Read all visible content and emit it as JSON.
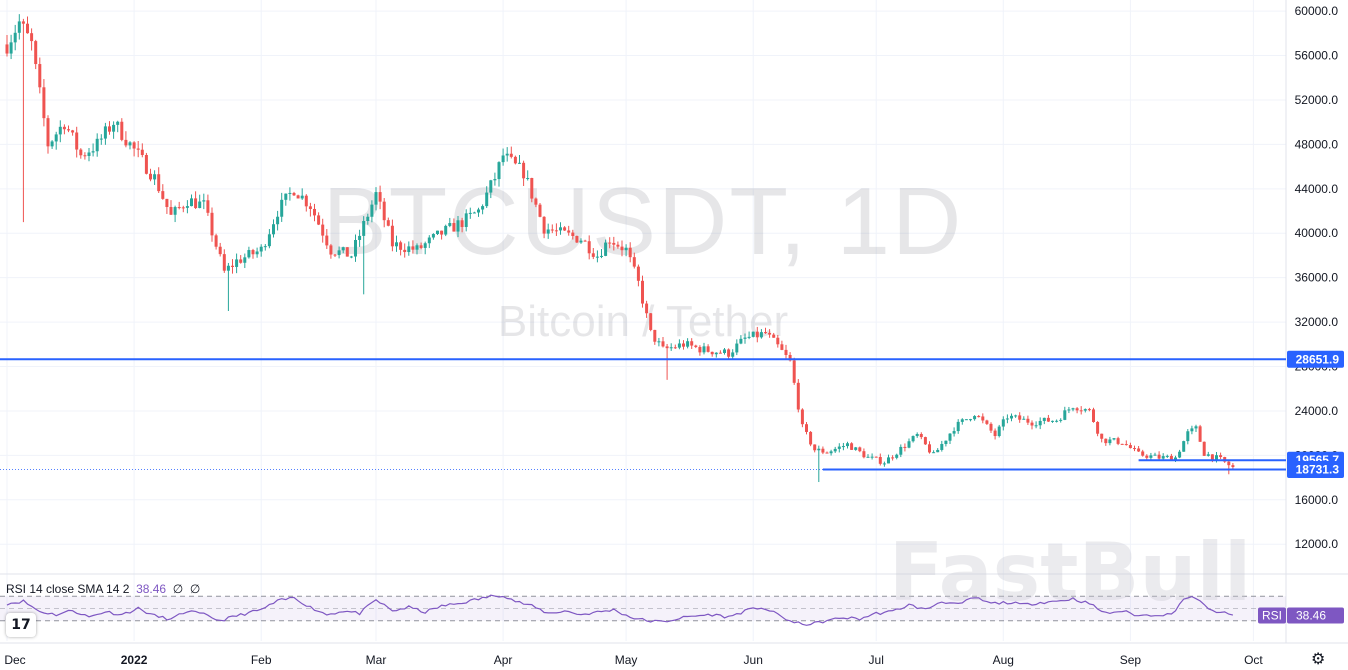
{
  "chart_data": {
    "type": "candlestick",
    "symbol": "BTCUSDT",
    "interval": "1D",
    "description": "Bitcoin / Tether",
    "price_axis": {
      "range": [
        9500,
        61000
      ],
      "ticks": [
        12000,
        16000,
        20000,
        24000,
        28000,
        32000,
        36000,
        40000,
        44000,
        48000,
        52000,
        56000,
        60000
      ],
      "tick_labels": [
        "12000.0",
        "16000.0",
        "20000.0",
        "24000.0",
        "28000.0",
        "32000.0",
        "36000.0",
        "40000.0",
        "44000.0",
        "48000.0",
        "52000.0",
        "56000.0",
        "60000.0"
      ]
    },
    "time_axis": {
      "labels": [
        "Dec",
        "2022",
        "Feb",
        "Mar",
        "Apr",
        "May",
        "Jun",
        "Jul",
        "Aug",
        "Sep",
        "Oct"
      ],
      "label_day_index": [
        0,
        31,
        62,
        90,
        121,
        151,
        182,
        212,
        243,
        274,
        304
      ]
    },
    "anchor_points": [
      [
        0,
        57000
      ],
      [
        3,
        59000
      ],
      [
        6,
        57000
      ],
      [
        10,
        48000
      ],
      [
        14,
        50000
      ],
      [
        18,
        47000
      ],
      [
        22,
        48000
      ],
      [
        26,
        50000
      ],
      [
        31,
        47500
      ],
      [
        36,
        45000
      ],
      [
        40,
        41500
      ],
      [
        44,
        43000
      ],
      [
        48,
        42500
      ],
      [
        53,
        36500
      ],
      [
        56,
        37500
      ],
      [
        62,
        38500
      ],
      [
        66,
        42000
      ],
      [
        70,
        44000
      ],
      [
        74,
        42500
      ],
      [
        79,
        38500
      ],
      [
        84,
        38000
      ],
      [
        90,
        43500
      ],
      [
        94,
        39000
      ],
      [
        100,
        38500
      ],
      [
        106,
        40000
      ],
      [
        111,
        41000
      ],
      [
        115,
        42000
      ],
      [
        119,
        45000
      ],
      [
        121,
        47000
      ],
      [
        124,
        46000
      ],
      [
        126,
        45500
      ],
      [
        131,
        40500
      ],
      [
        135,
        40000
      ],
      [
        140,
        39500
      ],
      [
        144,
        38000
      ],
      [
        147,
        39500
      ],
      [
        151,
        38500
      ],
      [
        154,
        35500
      ],
      [
        157,
        31000
      ],
      [
        160,
        29500
      ],
      [
        165,
        30000
      ],
      [
        170,
        29500
      ],
      [
        176,
        29200
      ],
      [
        180,
        30500
      ],
      [
        185,
        31000
      ],
      [
        188,
        29800
      ],
      [
        191,
        28400
      ],
      [
        194,
        22500
      ],
      [
        197,
        20500
      ],
      [
        200,
        20300
      ],
      [
        205,
        21000
      ],
      [
        210,
        19800
      ],
      [
        214,
        19400
      ],
      [
        218,
        20600
      ],
      [
        222,
        21800
      ],
      [
        226,
        20000
      ],
      [
        231,
        22500
      ],
      [
        236,
        23800
      ],
      [
        241,
        21800
      ],
      [
        244,
        23500
      ],
      [
        250,
        23000
      ],
      [
        256,
        23200
      ],
      [
        260,
        24500
      ],
      [
        264,
        24000
      ],
      [
        267,
        21400
      ],
      [
        272,
        21200
      ],
      [
        276,
        20100
      ],
      [
        281,
        19800
      ],
      [
        285,
        19800
      ],
      [
        288,
        22000
      ],
      [
        290,
        22400
      ],
      [
        292,
        20200
      ],
      [
        296,
        19600
      ],
      [
        299,
        18900
      ]
    ],
    "candle_count": 300,
    "horizontal_lines": [
      {
        "price": 28651.9,
        "label": "28651.9",
        "color": "#2962ff"
      },
      {
        "price": 19565.7,
        "label": "19565.7",
        "color": "#2962ff"
      },
      {
        "price": 18731.3,
        "label": "18731.3",
        "color": "#2962ff"
      }
    ],
    "last_price": 18731.3,
    "colors": {
      "up": "#26a69a",
      "down": "#ef5350",
      "line": "#2962ff",
      "rsi": "#7e57c2",
      "grid": "#f0f3fa"
    },
    "rsi": {
      "legend": "RSI 14 close SMA 14 2",
      "value": 38.46,
      "value_label": "38.46",
      "extra_values": [
        "∅",
        "∅"
      ],
      "badge_label": "RSI",
      "range": [
        0,
        100
      ],
      "upper_band": 70,
      "middle_band": 50,
      "lower_band": 30,
      "anchor_points": [
        [
          0,
          58
        ],
        [
          4,
          62
        ],
        [
          8,
          45
        ],
        [
          12,
          40
        ],
        [
          16,
          47
        ],
        [
          20,
          36
        ],
        [
          24,
          45
        ],
        [
          28,
          40
        ],
        [
          32,
          50
        ],
        [
          36,
          38
        ],
        [
          40,
          32
        ],
        [
          44,
          46
        ],
        [
          48,
          40
        ],
        [
          52,
          30
        ],
        [
          56,
          38
        ],
        [
          62,
          48
        ],
        [
          66,
          62
        ],
        [
          70,
          68
        ],
        [
          74,
          52
        ],
        [
          78,
          40
        ],
        [
          82,
          46
        ],
        [
          86,
          42
        ],
        [
          90,
          64
        ],
        [
          94,
          46
        ],
        [
          98,
          52
        ],
        [
          102,
          44
        ],
        [
          106,
          54
        ],
        [
          110,
          58
        ],
        [
          114,
          64
        ],
        [
          118,
          70
        ],
        [
          121,
          72
        ],
        [
          124,
          62
        ],
        [
          128,
          54
        ],
        [
          132,
          42
        ],
        [
          136,
          46
        ],
        [
          140,
          40
        ],
        [
          144,
          44
        ],
        [
          148,
          48
        ],
        [
          152,
          36
        ],
        [
          156,
          30
        ],
        [
          160,
          28
        ],
        [
          164,
          34
        ],
        [
          168,
          38
        ],
        [
          172,
          40
        ],
        [
          176,
          36
        ],
        [
          180,
          46
        ],
        [
          184,
          52
        ],
        [
          188,
          40
        ],
        [
          192,
          26
        ],
        [
          196,
          24
        ],
        [
          200,
          30
        ],
        [
          204,
          35
        ],
        [
          208,
          33
        ],
        [
          212,
          42
        ],
        [
          216,
          45
        ],
        [
          220,
          56
        ],
        [
          224,
          48
        ],
        [
          228,
          62
        ],
        [
          232,
          56
        ],
        [
          236,
          68
        ],
        [
          240,
          58
        ],
        [
          244,
          60
        ],
        [
          248,
          56
        ],
        [
          252,
          60
        ],
        [
          256,
          62
        ],
        [
          260,
          66
        ],
        [
          264,
          58
        ],
        [
          268,
          42
        ],
        [
          272,
          46
        ],
        [
          276,
          38
        ],
        [
          280,
          40
        ],
        [
          284,
          40
        ],
        [
          287,
          66
        ],
        [
          290,
          68
        ],
        [
          293,
          48
        ],
        [
          296,
          44
        ],
        [
          299,
          38
        ]
      ]
    }
  },
  "watermark": {
    "symbol": "BTCUSDT, 1D",
    "description": "Bitcoin / Tether"
  },
  "brand_watermark": "FastBull",
  "logo_text": "17",
  "settings_icon": "gear-icon"
}
